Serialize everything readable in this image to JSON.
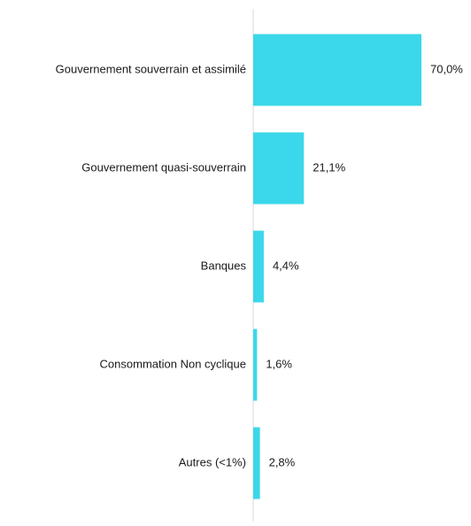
{
  "chart_data": {
    "type": "bar",
    "orientation": "horizontal",
    "categories": [
      "Gouvernement souverrain et assimilé",
      "Gouvernement quasi-souverrain",
      "Banques",
      "Consommation Non cyclique",
      "Autres (<1%)"
    ],
    "values": [
      70.0,
      21.1,
      4.4,
      1.6,
      2.8
    ],
    "value_labels": [
      "70,0%",
      "21,1%",
      "4,4%",
      "1,6%",
      "2,8%"
    ],
    "xlim": [
      0,
      70
    ],
    "grid": false,
    "legend": "none",
    "colors": {
      "bar": "#3ad8ea",
      "axis": "#d9d9d9",
      "text": "#1a1a1a"
    }
  }
}
